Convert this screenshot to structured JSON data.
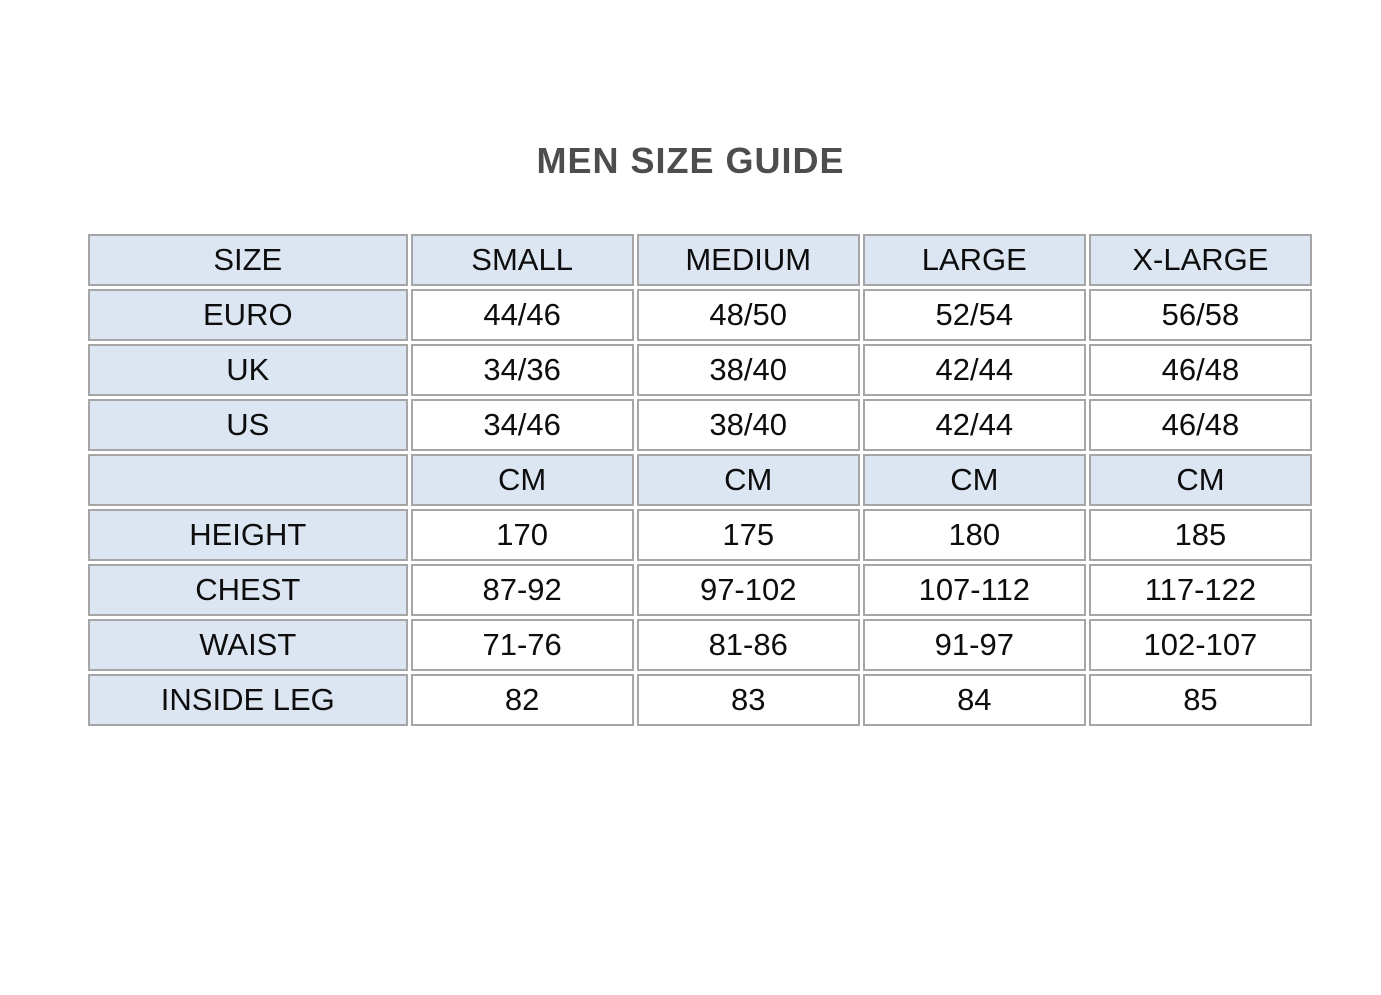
{
  "page": {
    "title": "MEN SIZE GUIDE"
  },
  "table": {
    "header": {
      "size": "SIZE",
      "small": "SMALL",
      "medium": "MEDIUM",
      "large": "LARGE",
      "xlarge": "X-LARGE"
    },
    "rows": [
      {
        "label": "EURO",
        "values": [
          "44/46",
          "48/50",
          "52/54",
          "56/58"
        ]
      },
      {
        "label": "UK",
        "values": [
          "34/36",
          "38/40",
          "42/44",
          "46/48"
        ]
      },
      {
        "label": "US",
        "values": [
          "34/46",
          "38/40",
          "42/44",
          "46/48"
        ]
      },
      {
        "label": "",
        "values": [
          "CM",
          "CM",
          "CM",
          "CM"
        ]
      },
      {
        "label": "HEIGHT",
        "values": [
          "170",
          "175",
          "180",
          "185"
        ]
      },
      {
        "label": "CHEST",
        "values": [
          "87-92",
          "97-102",
          "107-112",
          "117-122"
        ]
      },
      {
        "label": "WAIST",
        "values": [
          "71-76",
          "81-86",
          "91-97",
          "102-107"
        ]
      },
      {
        "label": "INSIDE LEG",
        "values": [
          "82",
          "83",
          "84",
          "85"
        ]
      }
    ],
    "colors": {
      "header_bg": "#dce6f2",
      "cell_bg": "#ffffff",
      "border": "#a6a6a6",
      "title_color": "#4d4d4d",
      "text_color": "#0d0d0d"
    }
  }
}
